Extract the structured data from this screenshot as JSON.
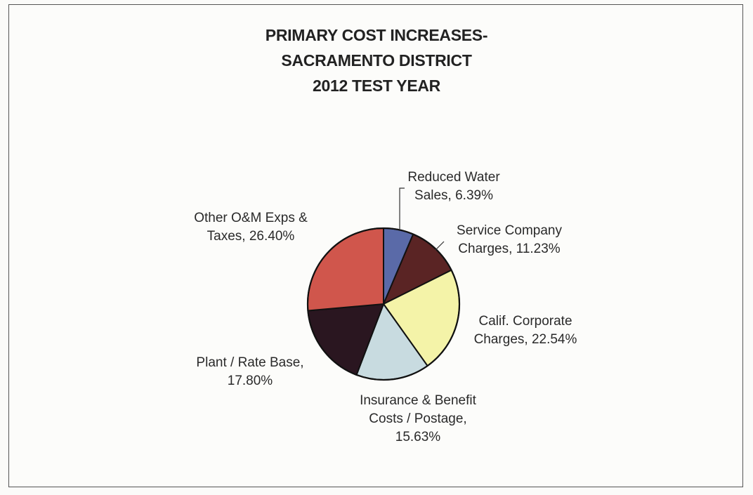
{
  "chart_data": {
    "type": "pie",
    "title_lines": [
      "PRIMARY COST INCREASES-",
      "SACRAMENTO DISTRICT",
      "2012 TEST YEAR"
    ],
    "slices": [
      {
        "name": "Reduced Water Sales",
        "value": 6.39,
        "label_lines": [
          "Reduced Water",
          "Sales, 6.39%"
        ],
        "color": "#5a6aa8"
      },
      {
        "name": "Service Company Charges",
        "value": 11.23,
        "label_lines": [
          "Service Company",
          "Charges, 11.23%"
        ],
        "color": "#5a2424"
      },
      {
        "name": "Calif. Corporate Charges",
        "value": 22.54,
        "label_lines": [
          "Calif. Corporate",
          "Charges, 22.54%"
        ],
        "color": "#f4f3a8"
      },
      {
        "name": "Insurance & Benefit Costs / Postage",
        "value": 15.63,
        "label_lines": [
          "Insurance & Benefit",
          "Costs / Postage,",
          "15.63%"
        ],
        "color": "#c8dbe0"
      },
      {
        "name": "Plant / Rate Base",
        "value": 17.8,
        "label_lines": [
          "Plant / Rate Base,",
          "17.80%"
        ],
        "color": "#2a1620"
      },
      {
        "name": "Other O&M Exps & Taxes",
        "value": 26.4,
        "label_lines": [
          "Other O&M Exps &",
          "Taxes, 26.40%"
        ],
        "color": "#d0564c"
      }
    ],
    "start_angle": "12 o'clock",
    "direction": "clockwise",
    "legend": "none",
    "edge_color": "#111111"
  }
}
